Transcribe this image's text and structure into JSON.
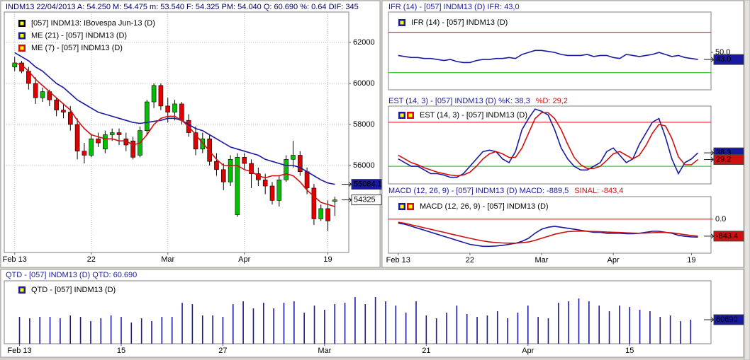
{
  "chart_data": [
    {
      "type": "candlestick",
      "title": [
        {
          "text": "INDM13   22/04/2013  A: 54.250  M: 54.475  m: 53.540  F: 54.325  PM: 54.040  Q: 60.690  %: 0.64  DIF: 345",
          "color": "#000060"
        }
      ],
      "legend": [
        {
          "text": "[057] INDM13: IBovespa Jun-13      (D)",
          "colors": [
            "#000000"
          ]
        },
        {
          "text": "ME (21)  - [057] INDM13 (D)",
          "colors": [
            "#1a1aa0"
          ]
        },
        {
          "text": "ME (7)  - [057] INDM13 (D)",
          "colors": [
            "#d01010"
          ]
        }
      ],
      "up_color": "#00c000",
      "down_color": "#e00000",
      "candles": {
        "box": true,
        "open": [
          60800,
          61000,
          60600,
          60000,
          59300,
          59600,
          59200,
          58700,
          58600,
          58000,
          56700,
          56500,
          57300,
          56800,
          57500,
          57600,
          57300,
          57200,
          56500,
          57700,
          59100,
          59900,
          58900,
          58600,
          59000,
          58200,
          57600,
          56800,
          57300,
          56200,
          55800,
          55200,
          53600,
          56400,
          56100,
          55600,
          55300,
          55000,
          54300,
          55300,
          56300,
          56500,
          55700,
          54900,
          53400,
          53900,
          54250
        ],
        "high": [
          61300,
          61100,
          60800,
          60300,
          59800,
          59700,
          59300,
          59000,
          58900,
          58300,
          57100,
          57500,
          57600,
          57700,
          57800,
          57800,
          57600,
          57400,
          57900,
          59200,
          60000,
          60000,
          59300,
          59200,
          59100,
          58500,
          57900,
          57600,
          57500,
          56600,
          56100,
          56500,
          56600,
          56600,
          56300,
          55900,
          55600,
          55200,
          55500,
          56500,
          57200,
          56700,
          55900,
          55100,
          54100,
          54300,
          54475
        ],
        "low": [
          60600,
          60500,
          59700,
          59000,
          59100,
          58900,
          58400,
          58300,
          57700,
          56300,
          56100,
          56400,
          56900,
          56600,
          57200,
          57000,
          56700,
          56300,
          56400,
          57500,
          58800,
          58700,
          58100,
          58200,
          58000,
          57400,
          56500,
          56600,
          56000,
          55500,
          54800,
          55000,
          53500,
          55800,
          54900,
          55000,
          54600,
          54100,
          54000,
          55200,
          55900,
          55500,
          54600,
          53100,
          53300,
          52800,
          53540
        ],
        "close": [
          61000,
          60600,
          60000,
          59300,
          59600,
          59200,
          58700,
          58600,
          58000,
          56700,
          56500,
          57300,
          57100,
          57500,
          57600,
          57500,
          57000,
          56400,
          57700,
          59100,
          59900,
          58900,
          58600,
          59000,
          58200,
          57600,
          56800,
          57300,
          56200,
          55800,
          55200,
          56300,
          56400,
          56100,
          55600,
          55300,
          55000,
          54300,
          55300,
          56300,
          56500,
          55700,
          54900,
          53400,
          53900,
          53300,
          54325
        ]
      },
      "series": [
        {
          "color": "#1a1aa0",
          "box": true,
          "values": [
            61500,
            61300,
            61100,
            60800,
            60600,
            60300,
            60000,
            59800,
            59500,
            59200,
            59000,
            58800,
            58600,
            58500,
            58400,
            58300,
            58200,
            58100,
            58050,
            58100,
            58150,
            58200,
            58300,
            58300,
            58200,
            58000,
            57800,
            57700,
            57500,
            57300,
            57100,
            56900,
            56800,
            56700,
            56600,
            56500,
            56300,
            56200,
            56100,
            56000,
            56000,
            55900,
            55700,
            55500,
            55300,
            55150,
            55084.1
          ]
        },
        {
          "color": "#d01010",
          "values": [
            61000,
            60900,
            60600,
            60200,
            59900,
            59600,
            59300,
            59000,
            58700,
            58200,
            57800,
            57500,
            57400,
            57300,
            57300,
            57200,
            57200,
            57000,
            57100,
            57500,
            58000,
            58300,
            58400,
            58400,
            58200,
            57900,
            57500,
            57100,
            56700,
            56300,
            56000,
            56000,
            56000,
            55800,
            55700,
            55500,
            55400,
            55500,
            55500,
            55600,
            55500,
            55200,
            54800,
            54500,
            54200,
            54100,
            54000
          ]
        }
      ],
      "xlim": [
        -1.5,
        48
      ],
      "xticks": [
        {
          "value": 0,
          "label": "Feb 13"
        },
        {
          "value": 11,
          "label": "22"
        },
        {
          "value": 22,
          "label": "Mar"
        },
        {
          "value": 33,
          "label": "Apr"
        },
        {
          "value": 45,
          "label": "19"
        }
      ],
      "ylim": [
        51760,
        63480
      ],
      "yticks": [
        56000,
        58000,
        60000,
        62000
      ],
      "grid": true
    },
    {
      "type": "line",
      "title": [
        {
          "text": "IFR (14)  - [057] INDM13 (D)   IFR: 43,0",
          "color": "#1a1aa0"
        }
      ],
      "legend": [
        {
          "text": "IFR (14)  - [057] INDM13 (D)",
          "colors": [
            "#1a1aa0"
          ]
        }
      ],
      "series": [
        {
          "color": "#1a1aa0",
          "box": true,
          "values": [
            47,
            46,
            45,
            45,
            44,
            44,
            43,
            42,
            43,
            41,
            40,
            40,
            42,
            43,
            43,
            44,
            44,
            45,
            44,
            48,
            50,
            52,
            52,
            51,
            50,
            48,
            47,
            47,
            47,
            48,
            46,
            47,
            47,
            45,
            44,
            48,
            47,
            46,
            47,
            48,
            50,
            48,
            46,
            47,
            45,
            44,
            43
          ],
          "value_labels": {
            "46": "43.0"
          }
        }
      ],
      "hlines": [
        {
          "value": 70,
          "color": "#e00000"
        },
        {
          "value": 30,
          "color": "#00c000"
        }
      ],
      "xlim": [
        -1.5,
        48
      ],
      "ylim": [
        13,
        90
      ],
      "yticks": [
        {
          "value": 50,
          "label": "50.0"
        }
      ]
    },
    {
      "type": "line",
      "title": [
        {
          "text": "EST (14, 3)  - [057] INDM13 (D)   %K: 38,3",
          "color": "#1a1aa0"
        },
        {
          "text": "%D: 29,2",
          "color": "#d01010"
        }
      ],
      "legend": [
        {
          "text": "EST (14, 3)  - [057] INDM13 (D)",
          "colors": [
            "#1a1aa0",
            "#d01010"
          ]
        }
      ],
      "series": [
        {
          "color": "#1a1aa0",
          "box": true,
          "values": [
            30,
            25,
            20,
            20,
            15,
            10,
            10,
            8,
            5,
            5,
            10,
            20,
            30,
            40,
            42,
            40,
            30,
            25,
            40,
            70,
            85,
            98,
            95,
            90,
            70,
            45,
            30,
            20,
            15,
            15,
            20,
            25,
            40,
            45,
            35,
            25,
            30,
            50,
            65,
            80,
            85,
            60,
            30,
            10,
            25,
            30,
            38.3
          ]
        },
        {
          "color": "#d01010",
          "box": true,
          "values": [
            35,
            30,
            25,
            22,
            18,
            15,
            12,
            10,
            8,
            7,
            8,
            12,
            20,
            30,
            37,
            40,
            37,
            32,
            32,
            45,
            65,
            85,
            93,
            93,
            85,
            70,
            50,
            32,
            22,
            17,
            17,
            20,
            28,
            37,
            40,
            35,
            30,
            35,
            48,
            65,
            77,
            75,
            58,
            33,
            22,
            22,
            29.2
          ]
        }
      ],
      "hlines": [
        {
          "value": 80,
          "color": "#e00000"
        },
        {
          "value": 20,
          "color": "#00c000"
        }
      ],
      "xlim": [
        -1.5,
        48
      ],
      "ylim": [
        -4,
        102
      ]
    },
    {
      "type": "line",
      "title": [
        {
          "text": "MACD (12, 26, 9)  - [057] INDM13 (D)   MACD: -889,5",
          "color": "#1a1aa0"
        },
        {
          "text": "SINAL: -843,4",
          "color": "#d01010"
        }
      ],
      "legend": [
        {
          "text": "MACD (12, 26, 9)  - [057] INDM13 (D)",
          "colors": [
            "#1a1aa0",
            "#d01010"
          ]
        }
      ],
      "series": [
        {
          "color": "#1a1aa0",
          "values": [
            -200,
            -250,
            -350,
            -450,
            -550,
            -650,
            -750,
            -850,
            -950,
            -1050,
            -1150,
            -1250,
            -1300,
            -1350,
            -1350,
            -1330,
            -1300,
            -1250,
            -1200,
            -1100,
            -950,
            -700,
            -500,
            -400,
            -350,
            -400,
            -450,
            -500,
            -550,
            -600,
            -650,
            -650,
            -700,
            -700,
            -700,
            -720,
            -720,
            -700,
            -650,
            -600,
            -600,
            -650,
            -700,
            -800,
            -850,
            -880,
            -889.5
          ]
        },
        {
          "color": "#d01010",
          "box": true,
          "values": [
            -150,
            -200,
            -280,
            -350,
            -430,
            -500,
            -580,
            -650,
            -730,
            -800,
            -880,
            -950,
            -1020,
            -1080,
            -1130,
            -1160,
            -1180,
            -1190,
            -1190,
            -1170,
            -1130,
            -1050,
            -950,
            -850,
            -750,
            -680,
            -620,
            -600,
            -590,
            -600,
            -610,
            -620,
            -640,
            -650,
            -660,
            -680,
            -690,
            -700,
            -690,
            -670,
            -660,
            -660,
            -680,
            -720,
            -770,
            -810,
            -843.4
          ]
        }
      ],
      "hlines": [
        {
          "value": 0,
          "color": "#e00000"
        }
      ],
      "xlim": [
        -1.5,
        48
      ],
      "xticks": [
        {
          "value": 0,
          "label": "Feb 13"
        },
        {
          "value": 11,
          "label": "22"
        },
        {
          "value": 22,
          "label": "Mar"
        },
        {
          "value": 33,
          "label": "Apr"
        },
        {
          "value": 45,
          "label": "19"
        }
      ],
      "ylim": [
        -1690,
        1120
      ],
      "yticks": [
        {
          "value": 0,
          "label": "0.0"
        }
      ]
    },
    {
      "type": "bar",
      "title": [
        {
          "text": "QTD  - [057] INDM13 (D)   QTD: 60.690",
          "color": "#1a1aa0"
        }
      ],
      "legend": [
        {
          "text": "QTD  - [057] INDM13 (D)",
          "colors": [
            "#1a1aa0"
          ]
        }
      ],
      "series": [
        {
          "color": "#1a1aa0",
          "box": true,
          "values": [
            67800,
            64300,
            67800,
            67800,
            64300,
            71400,
            67800,
            57100,
            64300,
            71400,
            67800,
            53600,
            64300,
            57100,
            67800,
            67800,
            103500,
            100000,
            71400,
            71400,
            67800,
            100000,
            107100,
            89300,
            103500,
            89300,
            103500,
            107100,
            78500,
            96400,
            85700,
            100000,
            103500,
            117800,
            100000,
            117800,
            107100,
            96400,
            78500,
            107100,
            71400,
            64300,
            78500,
            96400,
            75000,
            67800,
            71400,
            82100,
            64300,
            78500,
            96400,
            67800,
            64300,
            103500,
            107100,
            114200,
            107100,
            96400,
            82100,
            96400,
            92800,
            85700,
            82100,
            67800,
            71400,
            57100,
            60690
          ]
        }
      ],
      "xlim": [
        -1.5,
        68
      ],
      "xticks": [
        {
          "value": 0,
          "label": "Feb 13"
        },
        {
          "value": 10,
          "label": "15"
        },
        {
          "value": 20,
          "label": "27"
        },
        {
          "value": 30,
          "label": "Mar"
        },
        {
          "value": 40,
          "label": "21"
        },
        {
          "value": 50,
          "label": "Apr"
        },
        {
          "value": 60,
          "label": "15"
        }
      ],
      "ylim": [
        0,
        159000
      ]
    }
  ]
}
